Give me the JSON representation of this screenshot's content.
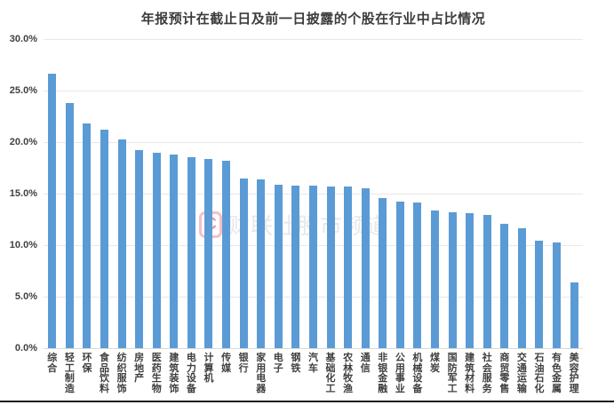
{
  "chart_data": {
    "type": "bar",
    "title": "年报预计在截止日及前一日披露的个股在行业中占比情况",
    "categories": [
      "综合",
      "轻工制造",
      "环保",
      "食品饮料",
      "纺织服饰",
      "房地产",
      "医药生物",
      "建筑装饰",
      "电力设备",
      "计算机",
      "传媒",
      "银行",
      "家用电器",
      "电子",
      "钢铁",
      "汽车",
      "基础化工",
      "农林牧渔",
      "通信",
      "非银金融",
      "公用事业",
      "机械设备",
      "煤炭",
      "国防军工",
      "建筑材料",
      "社会服务",
      "商贸零售",
      "交通运输",
      "石油石化",
      "有色金属",
      "美容护理"
    ],
    "values": [
      26.6,
      23.8,
      21.8,
      21.2,
      20.3,
      19.2,
      19.0,
      18.8,
      18.5,
      18.4,
      18.2,
      16.5,
      16.4,
      15.9,
      15.8,
      15.8,
      15.7,
      15.7,
      15.5,
      14.6,
      14.2,
      14.1,
      13.4,
      13.2,
      13.1,
      12.9,
      12.1,
      11.6,
      10.4,
      10.3,
      6.4
    ],
    "xlabel": "",
    "ylabel": "",
    "ylim": [
      0,
      30
    ],
    "yticks": [
      {
        "value": 30,
        "label": "30.0%"
      },
      {
        "value": 25,
        "label": "25.0%"
      },
      {
        "value": 20,
        "label": "20.0%"
      },
      {
        "value": 15,
        "label": "15.0%"
      },
      {
        "value": 10,
        "label": "10.0%"
      },
      {
        "value": 5,
        "label": "5.0%"
      },
      {
        "value": 0,
        "label": "0.0%"
      }
    ],
    "grid": "horizontal",
    "legend": "none",
    "bar_color": "#5b9bd5"
  },
  "watermark": {
    "logo_letter": "C",
    "text": "财联社股市频道"
  },
  "colors": {
    "bar": "#5b9bd5",
    "gridline": "#e8e8e8",
    "title_text": "#3c3c3c",
    "axis_text": "#404040",
    "bottom_line": "#1c1c1c",
    "background": "#ffffff",
    "watermark_red": "#e23e4c",
    "watermark_gray": "#e7e7e7"
  }
}
